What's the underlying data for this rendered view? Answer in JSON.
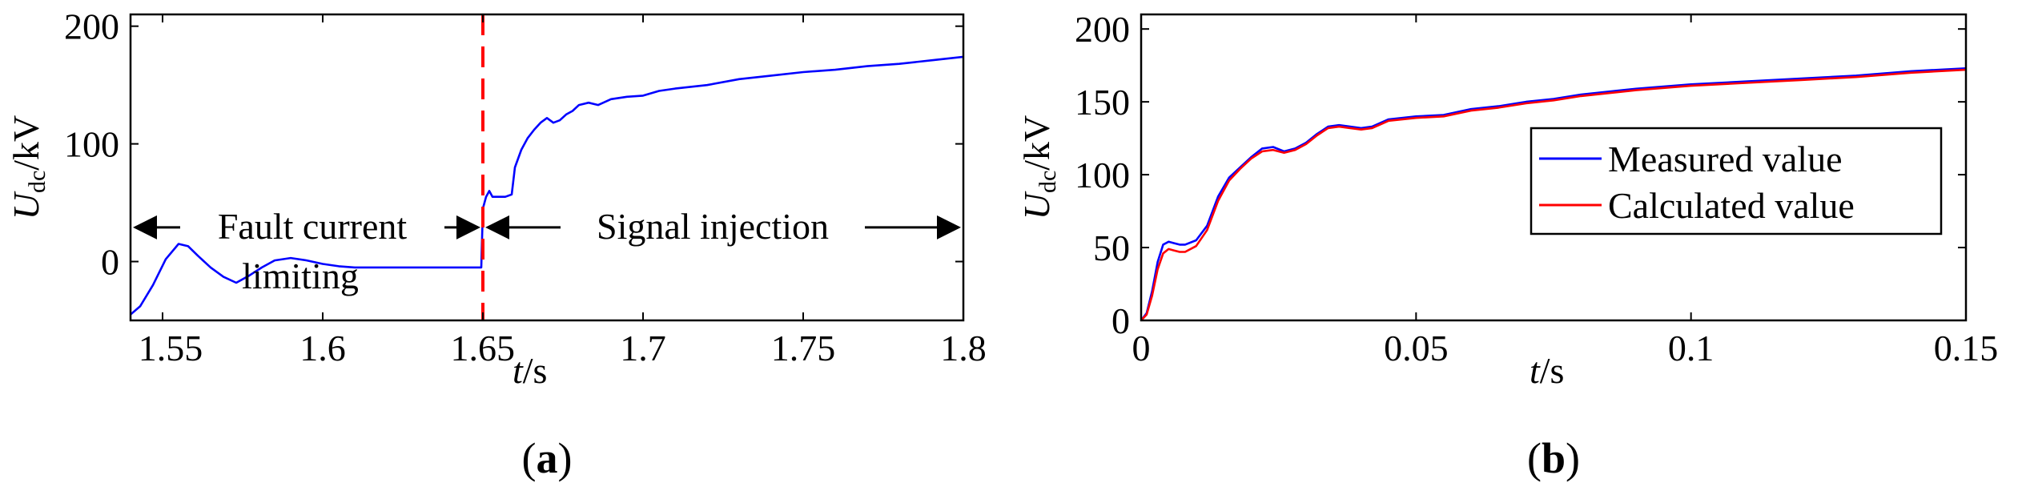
{
  "chart_data": [
    {
      "type": "line",
      "panel_label": "a",
      "caption_open": "(",
      "caption_close": ")",
      "xlabel_var": "t",
      "xlabel_unit": "/s",
      "ylabel_var": "U",
      "ylabel_sub": "dc",
      "ylabel_unit": "/kV",
      "xlim": [
        1.54,
        1.8
      ],
      "ylim": [
        -50,
        210
      ],
      "xticks": [
        1.55,
        1.6,
        1.65,
        1.7,
        1.75,
        1.8
      ],
      "xtick_labels": [
        "1.55",
        "1.6",
        "1.65",
        "1.7",
        "1.75",
        "1.8"
      ],
      "yticks": [
        0,
        100,
        200
      ],
      "ytick_labels": [
        "0",
        "100",
        "200"
      ],
      "series": [
        {
          "name": "Udc",
          "color": "#0000ff",
          "x": [
            1.54,
            1.543,
            1.547,
            1.551,
            1.555,
            1.558,
            1.561,
            1.565,
            1.569,
            1.573,
            1.577,
            1.581,
            1.585,
            1.59,
            1.595,
            1.6,
            1.605,
            1.61,
            1.615,
            1.62,
            1.625,
            1.63,
            1.635,
            1.64,
            1.645,
            1.6495,
            1.65,
            1.651,
            1.652,
            1.653,
            1.655,
            1.657,
            1.659,
            1.66,
            1.662,
            1.664,
            1.666,
            1.668,
            1.67,
            1.672,
            1.674,
            1.676,
            1.678,
            1.68,
            1.683,
            1.686,
            1.69,
            1.695,
            1.7,
            1.705,
            1.71,
            1.72,
            1.73,
            1.74,
            1.75,
            1.76,
            1.77,
            1.78,
            1.79,
            1.8
          ],
          "y": [
            -45,
            -38,
            -20,
            2,
            15,
            13,
            5,
            -5,
            -13,
            -18,
            -12,
            -5,
            1,
            3,
            1,
            -2,
            -4,
            -5,
            -5,
            -5,
            -5,
            -5,
            -5,
            -5,
            -5,
            -5,
            45,
            55,
            60,
            55,
            55,
            55,
            57,
            80,
            95,
            105,
            112,
            118,
            122,
            118,
            120,
            125,
            128,
            133,
            135,
            133,
            138,
            140,
            141,
            145,
            147,
            150,
            155,
            158,
            161,
            163,
            166,
            168,
            171,
            174
          ]
        }
      ],
      "marker_line": {
        "x": 1.65,
        "color": "#ff0000",
        "style": "dashed"
      },
      "annotations": [
        {
          "text": "Fault current",
          "range": [
            1.54,
            1.65
          ]
        },
        {
          "text": "limiting"
        },
        {
          "text": "Signal injection",
          "range": [
            1.65,
            1.8
          ]
        }
      ]
    },
    {
      "type": "line",
      "panel_label": "b",
      "caption_open": "(",
      "caption_close": ")",
      "xlabel_var": "t",
      "xlabel_unit": "/s",
      "ylabel_var": "U",
      "ylabel_sub": "dc",
      "ylabel_unit": "/kV",
      "xlim": [
        0,
        0.15
      ],
      "ylim": [
        0,
        210
      ],
      "xticks": [
        0,
        0.05,
        0.1,
        0.15
      ],
      "xtick_labels": [
        "0",
        "0.05",
        "0.1",
        "0.15"
      ],
      "yticks": [
        0,
        50,
        100,
        150,
        200
      ],
      "ytick_labels": [
        "0",
        "50",
        "100",
        "150",
        "200"
      ],
      "legend_position": "center-right",
      "series": [
        {
          "name": "Measured value",
          "color": "#0000ff",
          "x": [
            0,
            0.001,
            0.002,
            0.003,
            0.004,
            0.005,
            0.006,
            0.007,
            0.008,
            0.01,
            0.012,
            0.014,
            0.016,
            0.018,
            0.02,
            0.022,
            0.024,
            0.026,
            0.028,
            0.03,
            0.032,
            0.034,
            0.036,
            0.038,
            0.04,
            0.042,
            0.045,
            0.05,
            0.055,
            0.06,
            0.065,
            0.07,
            0.075,
            0.08,
            0.09,
            0.1,
            0.11,
            0.12,
            0.13,
            0.14,
            0.15
          ],
          "y": [
            0,
            5,
            20,
            40,
            52,
            54,
            53,
            52,
            52,
            55,
            65,
            85,
            98,
            105,
            112,
            118,
            119,
            116,
            118,
            122,
            128,
            133,
            134,
            133,
            132,
            133,
            138,
            140,
            141,
            145,
            147,
            150,
            152,
            155,
            159,
            162,
            164,
            166,
            168,
            171,
            173
          ]
        },
        {
          "name": "Calculated value",
          "color": "#ff0000",
          "x": [
            0,
            0.001,
            0.002,
            0.003,
            0.004,
            0.005,
            0.006,
            0.007,
            0.008,
            0.01,
            0.012,
            0.014,
            0.016,
            0.018,
            0.02,
            0.022,
            0.024,
            0.026,
            0.028,
            0.03,
            0.032,
            0.034,
            0.036,
            0.038,
            0.04,
            0.042,
            0.045,
            0.05,
            0.055,
            0.06,
            0.065,
            0.07,
            0.075,
            0.08,
            0.09,
            0.1,
            0.11,
            0.12,
            0.13,
            0.14,
            0.15
          ],
          "y": [
            0,
            4,
            17,
            35,
            46,
            49,
            48,
            47,
            47,
            51,
            62,
            82,
            96,
            104,
            111,
            116,
            117,
            115,
            117,
            121,
            127,
            132,
            133,
            132,
            131,
            132,
            137,
            139,
            140,
            144,
            146,
            149,
            151,
            154,
            158,
            161,
            163,
            165,
            167,
            170,
            172
          ]
        }
      ]
    }
  ]
}
